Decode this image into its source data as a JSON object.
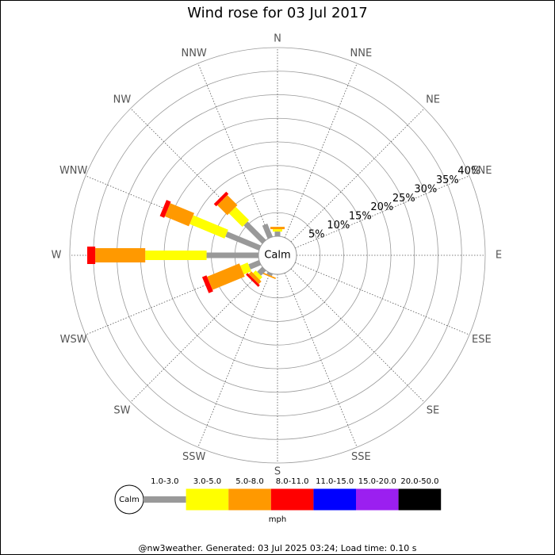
{
  "chart_data": {
    "type": "windrose",
    "title": "Wind rose for 03 Jul 2017",
    "directions": [
      "N",
      "NNE",
      "NE",
      "ENE",
      "E",
      "ESE",
      "SE",
      "SSE",
      "S",
      "SSW",
      "SW",
      "WSW",
      "W",
      "WNW",
      "NW",
      "NNW"
    ],
    "series": [
      {
        "name": "1.0-3.0",
        "color": "#999999",
        "values": [
          1,
          0,
          0,
          0,
          0,
          0,
          0,
          0,
          0,
          0.5,
          1.5,
          2.4,
          11,
          7.7,
          5.5,
          3
        ]
      },
      {
        "name": "3.0-5.0",
        "color": "#ffff00",
        "values": [
          0.5,
          0,
          0,
          0,
          0,
          0,
          0,
          0,
          0,
          0,
          0.8,
          1.7,
          13,
          8,
          4,
          0
        ]
      },
      {
        "name": "5.0-8.0",
        "color": "#ff9900",
        "values": [
          0.5,
          0,
          0,
          0,
          0,
          0,
          0,
          0,
          0,
          0.3,
          0.8,
          7.4,
          10.6,
          5.5,
          3,
          0
        ]
      },
      {
        "name": "8.0-11.0",
        "color": "#ff0000",
        "values": [
          0,
          0,
          0,
          0,
          0,
          0,
          0,
          0,
          0,
          0,
          0.5,
          1,
          1.7,
          1,
          0.7,
          0
        ]
      },
      {
        "name": "11.0-15.0",
        "color": "#0000ff",
        "values": [
          0,
          0,
          0,
          0,
          0,
          0,
          0,
          0,
          0,
          0,
          0,
          0,
          0,
          0,
          0,
          0
        ]
      },
      {
        "name": "15.0-20.0",
        "color": "#9b1ff0",
        "values": [
          0,
          0,
          0,
          0,
          0,
          0,
          0,
          0,
          0,
          0,
          0,
          0,
          0,
          0,
          0,
          0
        ]
      },
      {
        "name": "20.0-50.0",
        "color": "#000000",
        "values": [
          0,
          0,
          0,
          0,
          0,
          0,
          0,
          0,
          0,
          0,
          0,
          0,
          0,
          0,
          0,
          0
        ]
      }
    ],
    "rlim": [
      0,
      40
    ],
    "rticks": [
      {
        "value": 5,
        "label": "5%"
      },
      {
        "value": 10,
        "label": "10%"
      },
      {
        "value": 15,
        "label": "15%"
      },
      {
        "value": 20,
        "label": "20%"
      },
      {
        "value": 25,
        "label": "25%"
      },
      {
        "value": 30,
        "label": "30%"
      },
      {
        "value": 35,
        "label": "35%"
      },
      {
        "value": 40,
        "label": "40%"
      }
    ],
    "calm_label": "Calm",
    "units": "mph",
    "footer": "@nw3weather. Generated: 03 Jul 2025 03:24; Load time: 0.10 s"
  }
}
